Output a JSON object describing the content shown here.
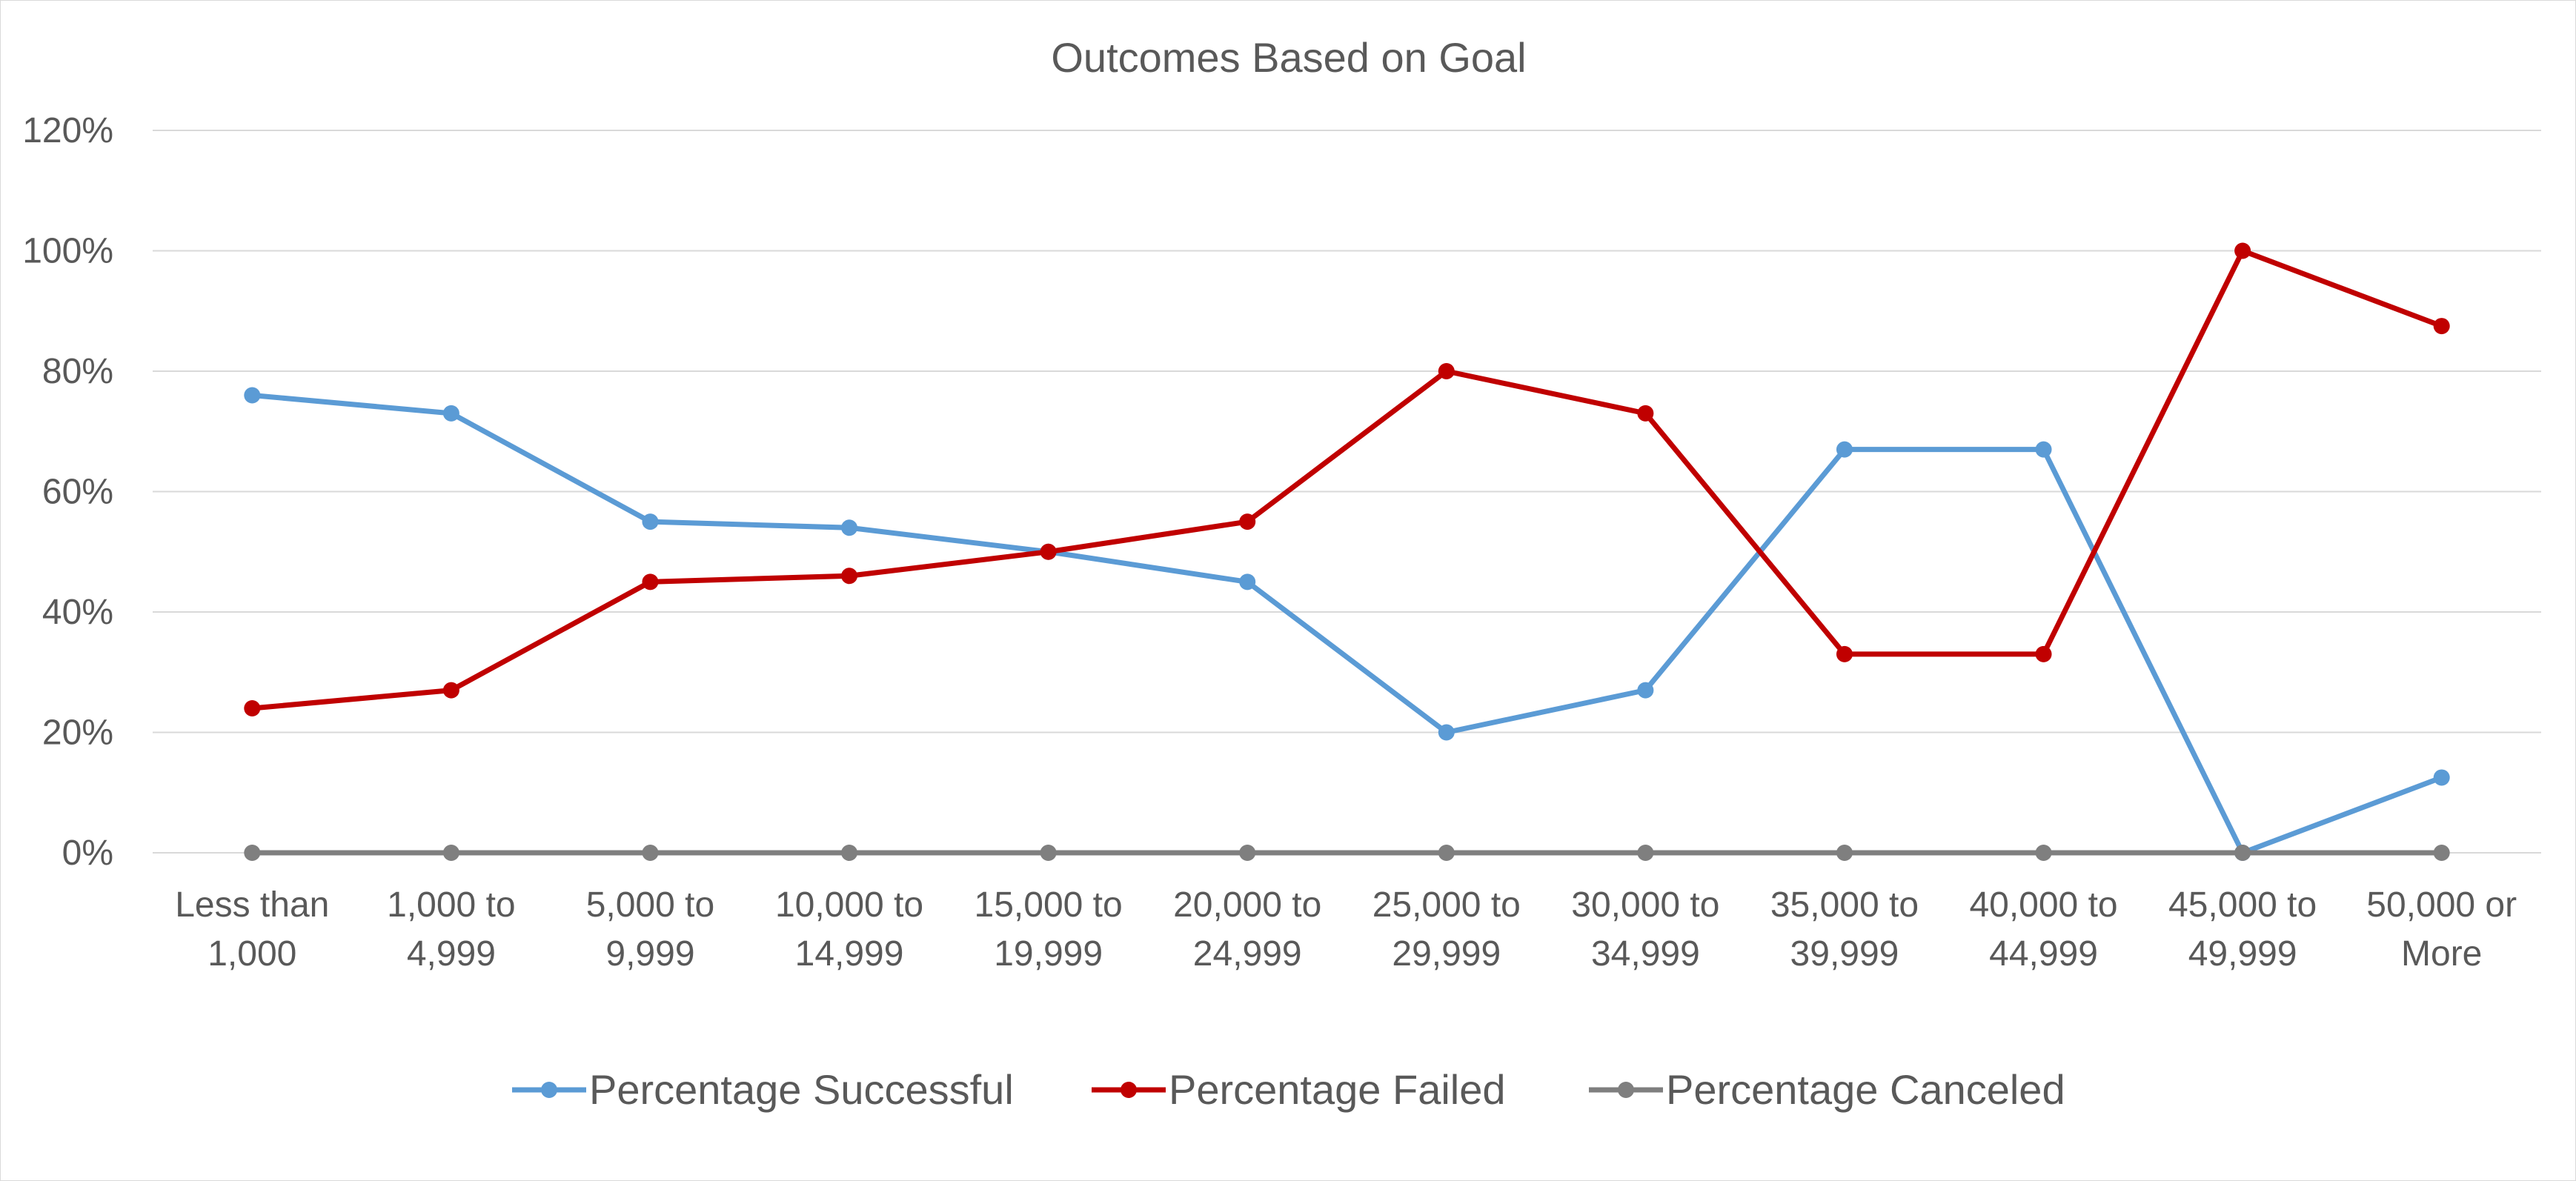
{
  "chart_data": {
    "type": "line",
    "title": "Outcomes Based on Goal",
    "xlabel": "",
    "ylabel": "",
    "categories": [
      [
        "Less than",
        "1,000"
      ],
      [
        "1,000 to",
        "4,999"
      ],
      [
        "5,000 to",
        "9,999"
      ],
      [
        "10,000 to",
        "14,999"
      ],
      [
        "15,000 to",
        "19,999"
      ],
      [
        "20,000 to",
        "24,999"
      ],
      [
        "25,000 to",
        "29,999"
      ],
      [
        "30,000 to",
        "34,999"
      ],
      [
        "35,000 to",
        "39,999"
      ],
      [
        "40,000 to",
        "44,999"
      ],
      [
        "45,000 to",
        "49,999"
      ],
      [
        "50,000 or",
        "More"
      ]
    ],
    "y_ticks": [
      "0%",
      "20%",
      "40%",
      "60%",
      "80%",
      "100%",
      "120%"
    ],
    "ylim": [
      0,
      120
    ],
    "grid": true,
    "legend_position": "bottom",
    "series": [
      {
        "name": "Percentage Successful",
        "color": "#5b9bd5",
        "values": [
          76,
          73,
          55,
          54,
          50,
          45,
          20,
          27,
          67,
          67,
          0,
          12.5
        ]
      },
      {
        "name": "Percentage Failed",
        "color": "#c00000",
        "values": [
          24,
          27,
          45,
          46,
          50,
          55,
          80,
          73,
          33,
          33,
          100,
          87.5
        ]
      },
      {
        "name": "Percentage Canceled",
        "color": "#7f7f7f",
        "values": [
          0,
          0,
          0,
          0,
          0,
          0,
          0,
          0,
          0,
          0,
          0,
          0
        ]
      }
    ]
  }
}
